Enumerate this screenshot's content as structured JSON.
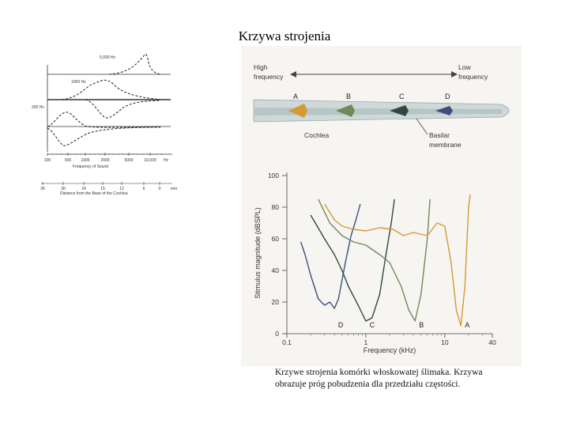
{
  "title": "Krzywa strojenia",
  "caption": "Krzywe strojenia komórki włoskowatej ślimaka. Krzywa obrazuje próg pobudzenia dla przedziału częstości.",
  "left_figure": {
    "curve_labels": [
      "5,000 Hz",
      "1000 Hz",
      "200 Hz"
    ],
    "freq_ticks": [
      "100",
      "500",
      "1000",
      "2000",
      "5000",
      "10,000",
      "Hz"
    ],
    "freq_axis_label": "Frequency of Sound",
    "dist_ticks": [
      "35",
      "30",
      "24",
      "15",
      "12",
      "6",
      "0",
      "mm"
    ],
    "dist_axis_label": "Distance from the Base of the Cochlea"
  },
  "cochlea_figure": {
    "high_frequency": [
      "High",
      "frequency"
    ],
    "low_frequency": [
      "Low",
      "frequency"
    ],
    "points": [
      "A",
      "B",
      "C",
      "D"
    ],
    "point_colors": [
      "#d49a33",
      "#6f8a5a",
      "#2f4a3a",
      "#3b4f7a"
    ],
    "cochlea_label": "Cochlea",
    "membrane_label": [
      "Basilar",
      "membrane"
    ]
  },
  "chart_data": {
    "type": "line",
    "ylabel": "Stimulus magnitude (dBSPL)",
    "xlabel": "Frequency (kHz)",
    "x_scale": "log",
    "xlim": [
      0.1,
      40
    ],
    "ylim": [
      0,
      100
    ],
    "x_ticks": [
      "0.1",
      "1",
      "10",
      "40"
    ],
    "y_ticks": [
      "0",
      "20",
      "40",
      "60",
      "80",
      "100"
    ],
    "series": [
      {
        "name": "D",
        "color": "#3b4f7a",
        "points": [
          [
            0.15,
            58
          ],
          [
            0.17,
            50
          ],
          [
            0.2,
            37
          ],
          [
            0.25,
            22
          ],
          [
            0.3,
            18
          ],
          [
            0.35,
            20
          ],
          [
            0.4,
            16
          ],
          [
            0.45,
            22
          ],
          [
            0.55,
            45
          ],
          [
            0.65,
            62
          ],
          [
            0.75,
            72
          ],
          [
            0.85,
            82
          ]
        ]
      },
      {
        "name": "C",
        "color": "#2f4a3a",
        "points": [
          [
            0.2,
            75
          ],
          [
            0.3,
            60
          ],
          [
            0.4,
            50
          ],
          [
            0.5,
            40
          ],
          [
            0.6,
            30
          ],
          [
            0.8,
            18
          ],
          [
            1.0,
            8
          ],
          [
            1.2,
            10
          ],
          [
            1.5,
            25
          ],
          [
            1.8,
            50
          ],
          [
            2.1,
            70
          ],
          [
            2.3,
            85
          ]
        ]
      },
      {
        "name": "B",
        "color": "#6f8a5a",
        "points": [
          [
            0.25,
            85
          ],
          [
            0.35,
            70
          ],
          [
            0.5,
            62
          ],
          [
            0.7,
            58
          ],
          [
            1.0,
            56
          ],
          [
            1.5,
            50
          ],
          [
            2.0,
            45
          ],
          [
            2.8,
            30
          ],
          [
            3.5,
            15
          ],
          [
            4.2,
            8
          ],
          [
            5.0,
            25
          ],
          [
            6.0,
            60
          ],
          [
            6.5,
            85
          ]
        ]
      },
      {
        "name": "A",
        "color": "#d49a33",
        "points": [
          [
            0.3,
            82
          ],
          [
            0.4,
            72
          ],
          [
            0.5,
            68
          ],
          [
            0.7,
            66
          ],
          [
            1.0,
            65
          ],
          [
            1.5,
            67
          ],
          [
            2.2,
            66
          ],
          [
            3.0,
            62
          ],
          [
            4.0,
            64
          ],
          [
            6.0,
            62
          ],
          [
            8.0,
            70
          ],
          [
            10.0,
            68
          ],
          [
            12.0,
            45
          ],
          [
            14.0,
            15
          ],
          [
            16.0,
            5
          ],
          [
            18.0,
            30
          ],
          [
            20.0,
            80
          ],
          [
            21.0,
            88
          ]
        ]
      }
    ]
  }
}
